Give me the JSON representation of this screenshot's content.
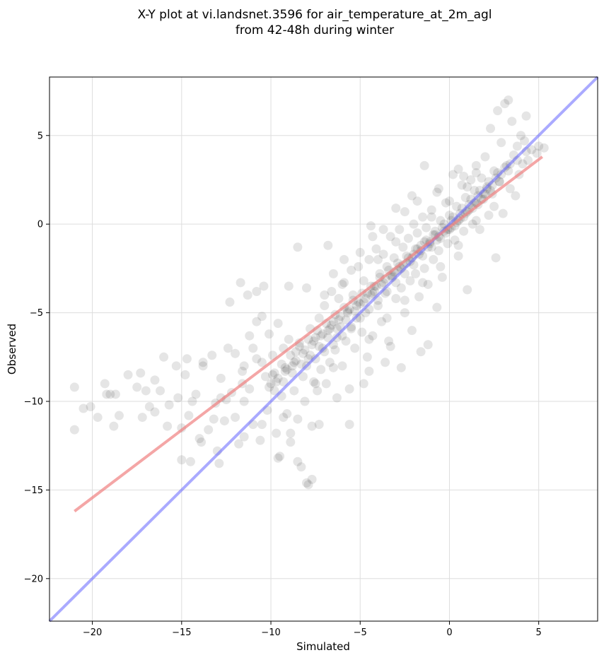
{
  "chart_data": {
    "type": "scatter",
    "title": [
      "X-Y plot at vi.landsnet.3596 for air_temperature_at_2m_agl",
      "from 42-48h during winter"
    ],
    "xlabel": "Simulated",
    "ylabel": "Observed",
    "xlim": [
      -22.4,
      8.3
    ],
    "ylim": [
      -22.4,
      8.3
    ],
    "xticks": [
      -20,
      -15,
      -10,
      -5,
      0,
      5
    ],
    "yticks": [
      -20,
      -15,
      -10,
      -5,
      0,
      5
    ],
    "xtick_labels": [
      "−20",
      "−15",
      "−10",
      "−5",
      "0",
      "5"
    ],
    "ytick_labels": [
      "−20",
      "−15",
      "−10",
      "−5",
      "0",
      "5"
    ],
    "grid": true,
    "legend": null,
    "colors": {
      "points": "#000000",
      "regression": "#f08080",
      "identity": "#6464ff",
      "grid": "#dddddd"
    },
    "regression_line": {
      "x": [
        -21.0,
        5.2
      ],
      "y": [
        -16.2,
        3.8
      ]
    },
    "identity_line": {
      "x": [
        -22.4,
        8.3
      ],
      "y": [
        -22.4,
        8.3
      ]
    },
    "point_summary": {
      "approx_count": 1500,
      "distribution": "dense cluster along diagonal from (-10,-9) to (3,3), broad scatter at low temperatures"
    },
    "points": [
      [
        -21.0,
        -9.2
      ],
      [
        -21.0,
        -11.6
      ],
      [
        -20.5,
        -10.4
      ],
      [
        -20.1,
        -10.3
      ],
      [
        -19.7,
        -10.9
      ],
      [
        -19.3,
        -9.0
      ],
      [
        -19.2,
        -9.6
      ],
      [
        -19.0,
        -9.6
      ],
      [
        -18.8,
        -11.4
      ],
      [
        -18.5,
        -10.8
      ],
      [
        -18.0,
        -8.5
      ],
      [
        -17.5,
        -9.2
      ],
      [
        -17.3,
        -8.4
      ],
      [
        -17.0,
        -9.4
      ],
      [
        -16.8,
        -10.3
      ],
      [
        -16.5,
        -10.6
      ],
      [
        -16.2,
        -9.4
      ],
      [
        -16.0,
        -7.5
      ],
      [
        -15.7,
        -10.2
      ],
      [
        -15.3,
        -8.0
      ],
      [
        -15.2,
        -9.8
      ],
      [
        -15.0,
        -11.5
      ],
      [
        -14.8,
        -8.5
      ],
      [
        -14.6,
        -10.8
      ],
      [
        -14.5,
        -13.4
      ],
      [
        -14.2,
        -9.6
      ],
      [
        -14.0,
        -12.1
      ],
      [
        -13.8,
        -8.0
      ],
      [
        -13.5,
        -11.6
      ],
      [
        -13.3,
        -7.4
      ],
      [
        -13.1,
        -10.1
      ],
      [
        -13.0,
        -12.8
      ],
      [
        -12.8,
        -8.7
      ],
      [
        -12.6,
        -11.1
      ],
      [
        -12.4,
        -7.0
      ],
      [
        -12.2,
        -9.5
      ],
      [
        -12.0,
        -10.9
      ],
      [
        -11.8,
        -12.4
      ],
      [
        -11.6,
        -8.3
      ],
      [
        -11.5,
        -10.0
      ],
      [
        -12.3,
        -4.4
      ],
      [
        -11.7,
        -3.3
      ],
      [
        -11.3,
        -4.0
      ],
      [
        -11.2,
        -9.3
      ],
      [
        -11.0,
        -11.3
      ],
      [
        -10.8,
        -7.6
      ],
      [
        -10.6,
        -12.2
      ],
      [
        -10.5,
        -5.2
      ],
      [
        -10.3,
        -8.6
      ],
      [
        -10.2,
        -10.5
      ],
      [
        -10.1,
        -6.2
      ],
      [
        -10.0,
        -9.0
      ],
      [
        -9.9,
        -7.4
      ],
      [
        -9.8,
        -8.4
      ],
      [
        -9.7,
        -11.8
      ],
      [
        -9.6,
        -5.6
      ],
      [
        -9.5,
        -13.1
      ],
      [
        -9.4,
        -9.7
      ],
      [
        -9.3,
        -7.0
      ],
      [
        -9.2,
        -8.1
      ],
      [
        -9.1,
        -10.7
      ],
      [
        -9.0,
        -6.5
      ],
      [
        -8.9,
        -12.3
      ],
      [
        -8.8,
        -8.0
      ],
      [
        -8.7,
        -9.4
      ],
      [
        -8.6,
        -7.2
      ],
      [
        -8.5,
        -11.0
      ],
      [
        -8.4,
        -6.7
      ],
      [
        -8.3,
        -13.7
      ],
      [
        -8.2,
        -8.6
      ],
      [
        -8.1,
        -10.0
      ],
      [
        -8.0,
        -14.6
      ],
      [
        -7.9,
        -7.6
      ],
      [
        -7.8,
        -5.9
      ],
      [
        -7.7,
        -11.4
      ],
      [
        -7.6,
        -8.9
      ],
      [
        -7.5,
        -6.4
      ],
      [
        -7.4,
        -9.4
      ],
      [
        -7.3,
        -5.3
      ],
      [
        -7.2,
        -8.2
      ],
      [
        -7.1,
        -7.0
      ],
      [
        -7.0,
        -4.6
      ],
      [
        -6.9,
        -9.0
      ],
      [
        -6.8,
        -6.0
      ],
      [
        -6.7,
        -7.8
      ],
      [
        -6.6,
        -3.8
      ],
      [
        -6.5,
        -5.5
      ],
      [
        -6.4,
        -7.1
      ],
      [
        -6.3,
        -6.4
      ],
      [
        -6.2,
        -4.2
      ],
      [
        -6.1,
        -5.8
      ],
      [
        -6.0,
        -8.0
      ],
      [
        -5.9,
        -3.3
      ],
      [
        -5.8,
        -6.6
      ],
      [
        -5.7,
        -4.9
      ],
      [
        -5.6,
        -11.3
      ],
      [
        -5.5,
        -5.9
      ],
      [
        -5.4,
        -4.0
      ],
      [
        -5.3,
        -7.0
      ],
      [
        -5.2,
        -5.3
      ],
      [
        -5.1,
        -2.4
      ],
      [
        -5.0,
        -4.5
      ],
      [
        -4.9,
        -6.1
      ],
      [
        -4.8,
        -3.2
      ],
      [
        -4.7,
        -5.0
      ],
      [
        -4.6,
        -7.5
      ],
      [
        -4.5,
        -2.0
      ],
      [
        -4.4,
        -4.0
      ],
      [
        -4.3,
        -6.3
      ],
      [
        -4.2,
        -3.5
      ],
      [
        -4.1,
        -1.4
      ],
      [
        -4.0,
        -4.6
      ],
      [
        -3.9,
        -2.8
      ],
      [
        -3.8,
        -5.5
      ],
      [
        -3.7,
        -1.7
      ],
      [
        -3.6,
        -3.9
      ],
      [
        -3.5,
        -2.4
      ],
      [
        -3.4,
        -6.6
      ],
      [
        -3.3,
        -0.7
      ],
      [
        -3.2,
        -3.0
      ],
      [
        -3.1,
        -1.9
      ],
      [
        -3.0,
        -4.2
      ],
      [
        -2.9,
        -2.6
      ],
      [
        -2.8,
        -0.3
      ],
      [
        -2.7,
        -3.6
      ],
      [
        -2.6,
        -1.3
      ],
      [
        -2.5,
        -5.0
      ],
      [
        -2.4,
        -2.2
      ],
      [
        -2.3,
        -0.8
      ],
      [
        -2.2,
        -3.2
      ],
      [
        -2.1,
        1.6
      ],
      [
        -2.0,
        -1.7
      ],
      [
        -1.9,
        -2.8
      ],
      [
        -1.8,
        -0.5
      ],
      [
        -1.7,
        -4.1
      ],
      [
        -1.6,
        -1.2
      ],
      [
        -1.5,
        0.4
      ],
      [
        -1.4,
        -2.5
      ],
      [
        -1.3,
        -0.2
      ],
      [
        -1.2,
        -3.4
      ],
      [
        -1.1,
        -1.0
      ],
      [
        -1.0,
        0.8
      ],
      [
        -0.9,
        -2.0
      ],
      [
        -0.8,
        -0.6
      ],
      [
        -0.7,
        1.8
      ],
      [
        -0.6,
        -1.5
      ],
      [
        -0.5,
        0.2
      ],
      [
        -0.4,
        -3.0
      ],
      [
        -0.3,
        -0.4
      ],
      [
        -0.2,
        1.2
      ],
      [
        -0.1,
        -1.1
      ],
      [
        0.0,
        0.5
      ],
      [
        0.1,
        -0.2
      ],
      [
        0.2,
        2.8
      ],
      [
        0.3,
        -0.9
      ],
      [
        0.4,
        1.0
      ],
      [
        0.5,
        -1.8
      ],
      [
        0.6,
        0.3
      ],
      [
        0.7,
        2.2
      ],
      [
        0.8,
        -0.4
      ],
      [
        0.9,
        1.5
      ],
      [
        1.0,
        -3.7
      ],
      [
        1.1,
        0.8
      ],
      [
        1.2,
        2.5
      ],
      [
        1.3,
        0.0
      ],
      [
        1.4,
        1.9
      ],
      [
        1.5,
        3.3
      ],
      [
        1.6,
        1.1
      ],
      [
        1.7,
        -0.3
      ],
      [
        1.8,
        2.6
      ],
      [
        1.9,
        1.4
      ],
      [
        2.0,
        3.8
      ],
      [
        2.1,
        2.0
      ],
      [
        2.2,
        0.5
      ],
      [
        2.3,
        5.4
      ],
      [
        2.4,
        1.7
      ],
      [
        2.5,
        3.0
      ],
      [
        2.6,
        -1.9
      ],
      [
        2.7,
        6.4
      ],
      [
        2.8,
        2.4
      ],
      [
        2.9,
        4.6
      ],
      [
        3.0,
        0.6
      ],
      [
        3.1,
        6.8
      ],
      [
        3.2,
        3.3
      ],
      [
        3.3,
        7.0
      ],
      [
        3.4,
        2.0
      ],
      [
        3.5,
        5.8
      ],
      [
        3.6,
        3.9
      ],
      [
        3.7,
        1.6
      ],
      [
        3.8,
        4.4
      ],
      [
        3.9,
        2.8
      ],
      [
        4.0,
        5.0
      ],
      [
        4.1,
        3.4
      ],
      [
        4.2,
        4.7
      ],
      [
        4.3,
        6.1
      ],
      [
        4.4,
        3.6
      ],
      [
        4.6,
        4.2
      ],
      [
        4.9,
        4.0
      ],
      [
        5.0,
        4.4
      ],
      [
        5.3,
        4.3
      ],
      [
        -8.5,
        -1.3
      ],
      [
        -6.8,
        -1.2
      ],
      [
        -9.0,
        -3.5
      ],
      [
        -10.4,
        -3.5
      ],
      [
        -10.8,
        -3.8
      ],
      [
        -8.0,
        -3.6
      ],
      [
        -4.4,
        -0.1
      ],
      [
        -3.0,
        0.9
      ],
      [
        -1.4,
        3.3
      ],
      [
        0.5,
        3.1
      ],
      [
        -12.9,
        -13.5
      ],
      [
        -15.0,
        -13.3
      ],
      [
        -11.5,
        -12.0
      ],
      [
        -10.5,
        -11.3
      ],
      [
        -8.5,
        -13.4
      ],
      [
        -7.9,
        -14.7
      ],
      [
        -7.7,
        -14.4
      ],
      [
        -9.6,
        -13.2
      ],
      [
        -9.3,
        -10.9
      ],
      [
        -8.9,
        -11.8
      ],
      [
        -4.8,
        -9.0
      ],
      [
        -4.5,
        -8.3
      ],
      [
        -3.6,
        -7.8
      ],
      [
        -2.7,
        -8.1
      ],
      [
        -1.6,
        -7.2
      ],
      [
        -1.2,
        -6.8
      ],
      [
        -0.7,
        -4.7
      ],
      [
        -2.1,
        -6.0
      ],
      [
        -3.3,
        -6.9
      ],
      [
        -5.6,
        -9.3
      ],
      [
        -6.3,
        -9.8
      ],
      [
        -7.3,
        -11.3
      ],
      [
        -13.8,
        -7.8
      ],
      [
        -14.7,
        -7.6
      ],
      [
        -12.5,
        -9.9
      ],
      [
        -16.5,
        -8.8
      ],
      [
        -18.7,
        -9.6
      ],
      [
        -17.2,
        -10.9
      ],
      [
        -15.8,
        -11.4
      ],
      [
        -13.9,
        -12.3
      ],
      [
        -6.5,
        -2.8
      ],
      [
        -5.9,
        -2.0
      ],
      [
        -5.0,
        -1.6
      ],
      [
        -4.3,
        -0.7
      ],
      [
        -3.7,
        -0.3
      ],
      [
        -2.5,
        0.7
      ],
      [
        -1.8,
        1.3
      ],
      [
        -0.6,
        2.0
      ],
      [
        0.8,
        2.7
      ],
      [
        1.5,
        2.9
      ],
      [
        -9.7,
        -8.9
      ],
      [
        -9.2,
        -8.3
      ],
      [
        -8.7,
        -7.8
      ],
      [
        -8.2,
        -7.3
      ],
      [
        -7.7,
        -6.8
      ],
      [
        -7.2,
        -6.3
      ],
      [
        -6.7,
        -5.9
      ],
      [
        -6.2,
        -5.4
      ],
      [
        -5.7,
        -5.0
      ],
      [
        -5.2,
        -4.6
      ],
      [
        -4.7,
        -4.2
      ],
      [
        -4.2,
        -3.8
      ],
      [
        -3.7,
        -3.3
      ],
      [
        -3.2,
        -2.9
      ],
      [
        -2.7,
        -2.5
      ],
      [
        -2.2,
        -2.1
      ],
      [
        -1.7,
        -1.7
      ],
      [
        -1.2,
        -1.3
      ],
      [
        -0.7,
        -0.9
      ],
      [
        -0.2,
        -0.5
      ],
      [
        0.3,
        -0.1
      ],
      [
        0.8,
        0.4
      ],
      [
        1.3,
        0.9
      ],
      [
        1.8,
        1.4
      ],
      [
        2.3,
        1.9
      ],
      [
        2.8,
        2.4
      ],
      [
        3.3,
        3.0
      ],
      [
        3.8,
        3.6
      ],
      [
        4.3,
        4.1
      ],
      [
        -9.9,
        -8.5
      ],
      [
        -9.4,
        -7.9
      ],
      [
        -8.9,
        -7.4
      ],
      [
        -8.4,
        -6.9
      ],
      [
        -7.9,
        -6.5
      ],
      [
        -7.4,
        -6.0
      ],
      [
        -6.9,
        -5.6
      ],
      [
        -6.4,
        -5.1
      ],
      [
        -5.9,
        -4.7
      ],
      [
        -5.4,
        -4.3
      ],
      [
        -4.9,
        -3.9
      ],
      [
        -4.4,
        -3.5
      ],
      [
        -3.9,
        -3.0
      ],
      [
        -3.4,
        -2.6
      ],
      [
        -2.9,
        -2.2
      ],
      [
        -2.4,
        -1.8
      ],
      [
        -1.9,
        -1.4
      ],
      [
        -1.4,
        -1.0
      ],
      [
        -0.9,
        -0.6
      ],
      [
        -0.4,
        -0.2
      ],
      [
        0.1,
        0.2
      ],
      [
        0.6,
        0.6
      ],
      [
        1.1,
        1.1
      ],
      [
        1.6,
        1.6
      ],
      [
        2.1,
        2.1
      ],
      [
        2.6,
        2.6
      ],
      [
        3.1,
        3.2
      ],
      [
        -10.1,
        -9.2
      ],
      [
        -9.6,
        -8.7
      ],
      [
        -9.1,
        -8.2
      ],
      [
        -8.6,
        -7.7
      ],
      [
        -8.1,
        -7.1
      ],
      [
        -7.6,
        -6.6
      ],
      [
        -7.1,
        -6.2
      ],
      [
        -6.6,
        -5.7
      ],
      [
        -6.1,
        -5.2
      ],
      [
        -5.6,
        -4.8
      ],
      [
        -5.1,
        -4.4
      ],
      [
        -4.6,
        -3.9
      ],
      [
        -4.1,
        -3.5
      ],
      [
        -3.6,
        -3.1
      ],
      [
        -3.1,
        -2.7
      ],
      [
        -2.6,
        -2.3
      ],
      [
        -2.1,
        -1.9
      ],
      [
        -1.6,
        -1.5
      ],
      [
        -1.1,
        -1.1
      ],
      [
        -0.6,
        -0.7
      ],
      [
        -0.1,
        -0.3
      ],
      [
        0.4,
        0.1
      ],
      [
        0.9,
        0.6
      ],
      [
        1.4,
        1.2
      ],
      [
        1.9,
        1.7
      ],
      [
        2.4,
        2.2
      ],
      [
        2.9,
        2.8
      ],
      [
        3.4,
        3.4
      ],
      [
        -9.8,
        -9.4
      ],
      [
        -9.3,
        -8.9
      ],
      [
        -8.8,
        -8.4
      ],
      [
        -8.3,
        -7.9
      ],
      [
        -7.8,
        -7.4
      ],
      [
        -7.3,
        -6.9
      ],
      [
        -6.8,
        -6.4
      ],
      [
        -6.3,
        -5.9
      ],
      [
        -5.8,
        -5.4
      ],
      [
        -5.3,
        -4.9
      ],
      [
        -4.8,
        -4.4
      ],
      [
        -4.3,
        -3.9
      ],
      [
        -3.8,
        -3.4
      ],
      [
        -3.3,
        -2.9
      ],
      [
        -2.8,
        -2.4
      ],
      [
        -2.3,
        -1.9
      ],
      [
        -1.8,
        -1.4
      ],
      [
        -1.3,
        -0.9
      ],
      [
        -0.8,
        -0.4
      ],
      [
        -0.3,
        0.0
      ],
      [
        0.2,
        0.4
      ],
      [
        0.7,
        0.9
      ],
      [
        1.2,
        1.4
      ],
      [
        1.7,
        1.9
      ],
      [
        2.2,
        2.4
      ],
      [
        2.7,
        2.9
      ],
      [
        -8.0,
        -8.0
      ],
      [
        -7.5,
        -7.6
      ],
      [
        -7.0,
        -7.2
      ],
      [
        -6.5,
        -6.8
      ],
      [
        -6.0,
        -6.3
      ],
      [
        -5.5,
        -5.8
      ],
      [
        -5.0,
        -5.3
      ],
      [
        -4.5,
        -4.8
      ],
      [
        -4.0,
        -4.3
      ],
      [
        -3.5,
        -3.8
      ],
      [
        -3.0,
        -3.3
      ],
      [
        -2.5,
        -2.8
      ],
      [
        -2.0,
        -2.3
      ],
      [
        -1.5,
        -1.8
      ],
      [
        -1.0,
        -1.3
      ],
      [
        -0.5,
        -0.8
      ],
      [
        0.0,
        -0.3
      ],
      [
        0.5,
        0.2
      ],
      [
        1.0,
        0.7
      ],
      [
        1.5,
        1.2
      ],
      [
        2.0,
        1.7
      ],
      [
        -7.0,
        -4.0
      ],
      [
        -6.0,
        -3.4
      ],
      [
        -5.5,
        -2.6
      ],
      [
        -4.0,
        -2.0
      ],
      [
        -3.0,
        -1.0
      ],
      [
        -2.0,
        0.0
      ],
      [
        -1.0,
        0.4
      ],
      [
        0.0,
        1.3
      ],
      [
        1.0,
        2.1
      ],
      [
        -4.5,
        -6.5
      ],
      [
        -3.5,
        -5.3
      ],
      [
        -2.5,
        -4.3
      ],
      [
        -1.5,
        -3.3
      ],
      [
        -0.5,
        -2.4
      ],
      [
        0.5,
        -1.2
      ],
      [
        1.5,
        0.2
      ],
      [
        2.5,
        1.0
      ],
      [
        -6.5,
        -8.1
      ],
      [
        -7.5,
        -9.0
      ],
      [
        -11.0,
        -7.0
      ],
      [
        -11.5,
        -8.0
      ],
      [
        -10.5,
        -7.8
      ],
      [
        -12.0,
        -7.3
      ],
      [
        -11.2,
        -6.3
      ],
      [
        -10.8,
        -5.5
      ],
      [
        -11.6,
        -9.0
      ],
      [
        -12.8,
        -9.8
      ],
      [
        -13.2,
        -11.0
      ],
      [
        -14.4,
        -10.0
      ]
    ]
  }
}
